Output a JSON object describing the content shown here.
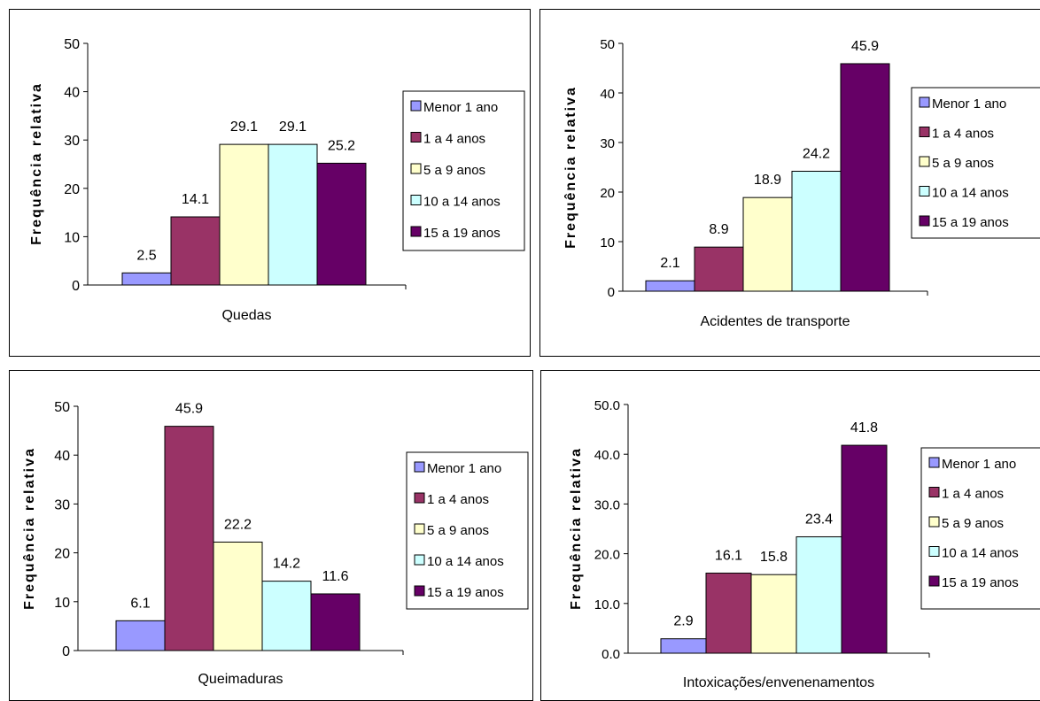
{
  "chart_data": [
    {
      "type": "bar",
      "title": "",
      "xlabel": "Quedas",
      "ylabel": "Frequência relativa",
      "ylim": [
        0,
        50
      ],
      "yticks": [
        "0",
        "10",
        "20",
        "30",
        "40",
        "50"
      ],
      "legend_position": "right",
      "categories": [
        "Quedas"
      ],
      "series": [
        {
          "name": "Menor 1 ano",
          "values": [
            2.5
          ],
          "label": "2.5",
          "color": "#9999FF"
        },
        {
          "name": "1 a 4 anos",
          "values": [
            14.1
          ],
          "label": "14.1",
          "color": "#993366"
        },
        {
          "name": "5 a 9 anos",
          "values": [
            29.1
          ],
          "label": "29.1",
          "color": "#FFFFCC"
        },
        {
          "name": "10 a 14 anos",
          "values": [
            29.1
          ],
          "label": "29.1",
          "color": "#CCFFFF"
        },
        {
          "name": "15 a 19 anos",
          "values": [
            25.2
          ],
          "label": "25.2",
          "color": "#660066"
        }
      ]
    },
    {
      "type": "bar",
      "title": "",
      "xlabel": "Acidentes de transporte",
      "ylabel": "Frequência relativa",
      "ylim": [
        0,
        50
      ],
      "yticks": [
        "0",
        "10",
        "20",
        "30",
        "40",
        "50"
      ],
      "legend_position": "right",
      "categories": [
        "Acidentes de transporte"
      ],
      "series": [
        {
          "name": "Menor 1 ano",
          "values": [
            2.1
          ],
          "label": "2.1",
          "color": "#9999FF"
        },
        {
          "name": "1 a 4 anos",
          "values": [
            8.9
          ],
          "label": "8.9",
          "color": "#993366"
        },
        {
          "name": "5 a 9 anos",
          "values": [
            18.9
          ],
          "label": "18.9",
          "color": "#FFFFCC"
        },
        {
          "name": "10 a 14 anos",
          "values": [
            24.2
          ],
          "label": "24.2",
          "color": "#CCFFFF"
        },
        {
          "name": "15 a 19 anos",
          "values": [
            45.9
          ],
          "label": "45.9",
          "color": "#660066"
        }
      ]
    },
    {
      "type": "bar",
      "title": "",
      "xlabel": "Queimaduras",
      "ylabel": "Frequência relativa",
      "ylim": [
        0,
        50
      ],
      "yticks": [
        "0",
        "10",
        "20",
        "30",
        "40",
        "50"
      ],
      "legend_position": "right",
      "categories": [
        "Queimaduras"
      ],
      "series": [
        {
          "name": "Menor 1 ano",
          "values": [
            6.1
          ],
          "label": "6.1",
          "color": "#9999FF"
        },
        {
          "name": "1 a 4 anos",
          "values": [
            45.9
          ],
          "label": "45.9",
          "color": "#993366"
        },
        {
          "name": "5 a 9 anos",
          "values": [
            22.2
          ],
          "label": "22.2",
          "color": "#FFFFCC"
        },
        {
          "name": "10 a 14 anos",
          "values": [
            14.2
          ],
          "label": "14.2",
          "color": "#CCFFFF"
        },
        {
          "name": "15 a 19 anos",
          "values": [
            11.6
          ],
          "label": "11.6",
          "color": "#660066"
        }
      ]
    },
    {
      "type": "bar",
      "title": "",
      "xlabel": "Intoxicações/envenenamentos",
      "ylabel": "Frequência relativa",
      "ylim": [
        0,
        50
      ],
      "yticks": [
        "0.0",
        "10.0",
        "20.0",
        "30.0",
        "40.0",
        "50.0"
      ],
      "legend_position": "right",
      "categories": [
        "Intoxicações/envenenamentos"
      ],
      "series": [
        {
          "name": "Menor 1 ano",
          "values": [
            2.9
          ],
          "label": "2.9",
          "color": "#9999FF"
        },
        {
          "name": "1 a 4 anos",
          "values": [
            16.1
          ],
          "label": "16.1",
          "color": "#993366"
        },
        {
          "name": "5 a 9 anos",
          "values": [
            15.8
          ],
          "label": "15.8",
          "color": "#FFFFCC"
        },
        {
          "name": "10 a 14 anos",
          "values": [
            23.4
          ],
          "label": "23.4",
          "color": "#CCFFFF"
        },
        {
          "name": "15 a 19 anos",
          "values": [
            41.8
          ],
          "label": "41.8",
          "color": "#660066"
        }
      ]
    }
  ]
}
